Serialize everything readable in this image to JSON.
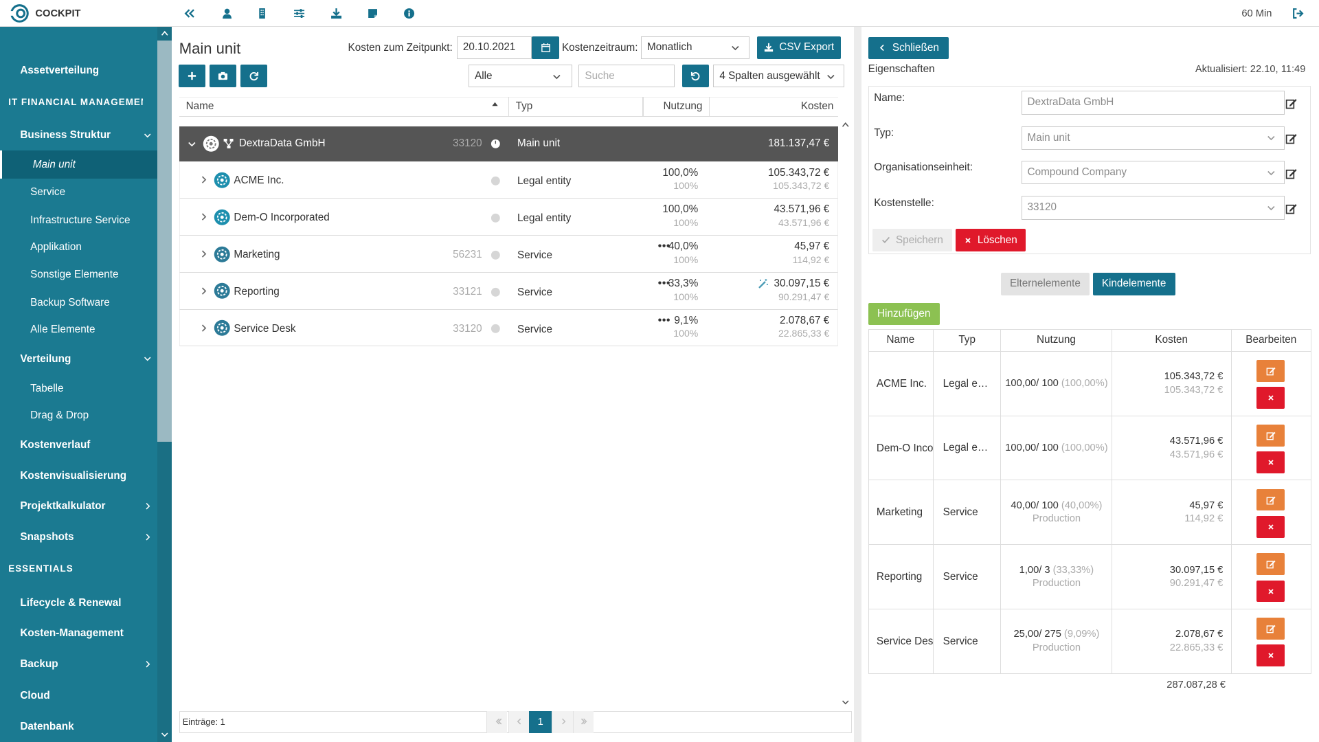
{
  "header": {
    "logo": "COCKPIT",
    "session": "60 Min"
  },
  "sidebar": {
    "items": [
      "Assetverteilung",
      "IT FINANCIAL MANAGEMENT",
      "Business Struktur",
      "Main unit",
      "Service",
      "Infrastructure Service",
      "Applikation",
      "Sonstige Elemente",
      "Backup Software",
      "Alle Elemente",
      "Verteilung",
      "Tabelle",
      "Drag & Drop",
      "Kostenverlauf",
      "Kostenvisualisierung",
      "Projektkalkulator",
      "Snapshots",
      "ESSENTIALS",
      "Lifecycle & Renewal",
      "Kosten-Management",
      "Backup",
      "Cloud",
      "Datenbank"
    ]
  },
  "main": {
    "title": "Main unit",
    "date_label": "Kosten zum Zeitpunkt:",
    "date": "20.10.2021",
    "period_label": "Kostenzeitraum:",
    "period": "Monatlich",
    "export": "CSV Export",
    "filter": "Alle",
    "search_placeholder": "Suche",
    "columns_select": "4 Spalten ausgewählt",
    "table": {
      "columns": [
        "Name",
        "Typ",
        "Nutzung",
        "Kosten"
      ],
      "root": {
        "name": "DextraData GmbH",
        "id": "33120",
        "type": "Main unit",
        "cost": "181.137,47 €"
      },
      "rows": [
        {
          "name": "ACME Inc.",
          "id": null,
          "type": "Legal entity",
          "usage": "100,0%",
          "usage_total": "100%",
          "cost": "105.343,72 €",
          "cost_total": "105.343,72 €"
        },
        {
          "name": "Dem-O Incorporated",
          "id": null,
          "type": "Legal entity",
          "usage": "100,0%",
          "usage_total": "100%",
          "cost": "43.571,96 €",
          "cost_total": "43.571,96 €"
        },
        {
          "name": "Marketing",
          "id": "56231",
          "type": "Service",
          "usage": "40,0%",
          "usage_total": "100%",
          "cost": "45,97 €",
          "cost_total": "114,92 €"
        },
        {
          "name": "Reporting",
          "id": "33121",
          "type": "Service",
          "usage": "33,3%",
          "usage_total": "100%",
          "cost": "30.097,15 €",
          "cost_total": "90.291,47 €"
        },
        {
          "name": "Service Desk",
          "id": "33120",
          "type": "Service",
          "usage": "9,1%",
          "usage_total": "100%",
          "cost": "2.078,67 €",
          "cost_total": "22.865,33 €"
        }
      ]
    },
    "footer": "Einträge: 1",
    "page": "1"
  },
  "details": {
    "close": "Schließen",
    "heading": "Eigenschaften",
    "updated": "Aktualisiert: 22.10, 11:49",
    "fields": [
      {
        "label": "Name:",
        "value": "DextraData GmbH"
      },
      {
        "label": "Typ:",
        "value": "Main unit"
      },
      {
        "label": "Organisationseinheit:",
        "value": "Compound Company"
      },
      {
        "label": "Kostenstelle:",
        "value": "33120"
      }
    ],
    "save": "Speichern",
    "delete": "Löschen",
    "tabs": [
      "Elternelemente",
      "Kindelemente"
    ],
    "add": "Hinzufügen",
    "columns": [
      "Name",
      "Typ",
      "Nutzung",
      "Kosten",
      "Bearbeiten"
    ],
    "rows": [
      {
        "name": "ACME Inc.",
        "type": "Legal entity",
        "usage": "100,00/ 100",
        "usage_pct": "(100,00%)",
        "usage_note": null,
        "cost": "105.343,72 €",
        "cost_total": "105.343,72 €"
      },
      {
        "name": "Dem-O Incorporated",
        "type": "Legal entity",
        "usage": "100,00/ 100",
        "usage_pct": "(100,00%)",
        "usage_note": null,
        "cost": "43.571,96 €",
        "cost_total": "43.571,96 €"
      },
      {
        "name": "Marketing",
        "type": "Service",
        "usage": "40,00/ 100",
        "usage_pct": "(40,00%)",
        "usage_note": "Production",
        "cost": "45,97 €",
        "cost_total": "114,92 €"
      },
      {
        "name": "Reporting",
        "type": "Service",
        "usage": "1,00/ 3",
        "usage_pct": "(33,33%)",
        "usage_note": "Production",
        "cost": "30.097,15 €",
        "cost_total": "90.291,47 €"
      },
      {
        "name": "Service Desk",
        "type": "Service",
        "usage": "25,00/ 275",
        "usage_pct": "(9,09%)",
        "usage_note": "Production",
        "cost": "2.078,67 €",
        "cost_total": "22.865,33 €"
      }
    ],
    "total": "287.087,28 €"
  }
}
